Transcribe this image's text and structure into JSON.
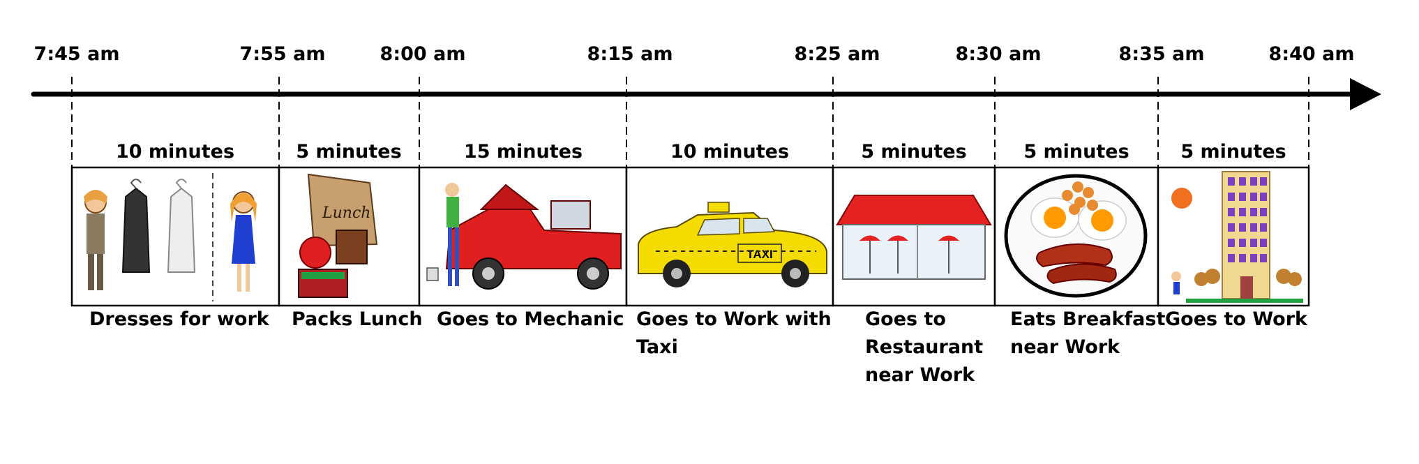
{
  "ticks": [
    {
      "time": "7:45 am"
    },
    {
      "time": "7:55 am"
    },
    {
      "time": "8:00 am"
    },
    {
      "time": "8:15 am"
    },
    {
      "time": "8:25 am"
    },
    {
      "time": "8:30 am"
    },
    {
      "time": "8:35 am"
    },
    {
      "time": "8:40 am"
    }
  ],
  "segments": [
    {
      "duration": "10 minutes",
      "caption": "Dresses for work",
      "icon": "dressing-icon"
    },
    {
      "duration": "5 minutes",
      "caption": "Packs Lunch",
      "icon": "lunch-bag-icon"
    },
    {
      "duration": "15 minutes",
      "caption": "Goes to Mechanic",
      "icon": "mechanic-truck-icon"
    },
    {
      "duration": "10 minutes",
      "caption": "Goes to Work with\nTaxi",
      "icon": "taxi-icon"
    },
    {
      "duration": "5 minutes",
      "caption": "Goes to\nRestaurant\nnear Work",
      "icon": "restaurant-icon"
    },
    {
      "duration": "5 minutes",
      "caption": "Eats Breakfast\nnear Work",
      "icon": "breakfast-plate-icon"
    },
    {
      "duration": "5 minutes",
      "caption": "Goes to Work",
      "icon": "office-building-icon"
    }
  ],
  "taxi_sign": "TAXI",
  "lunch_label": "Lunch",
  "colors": {
    "line": "#000000",
    "truck": "#e02020",
    "taxi": "#f5dc00",
    "roof": "#e52222",
    "egg_yolk": "#ff9a00",
    "building": "#f0d890",
    "window": "#7b3fbf",
    "sun": "#f07020"
  }
}
